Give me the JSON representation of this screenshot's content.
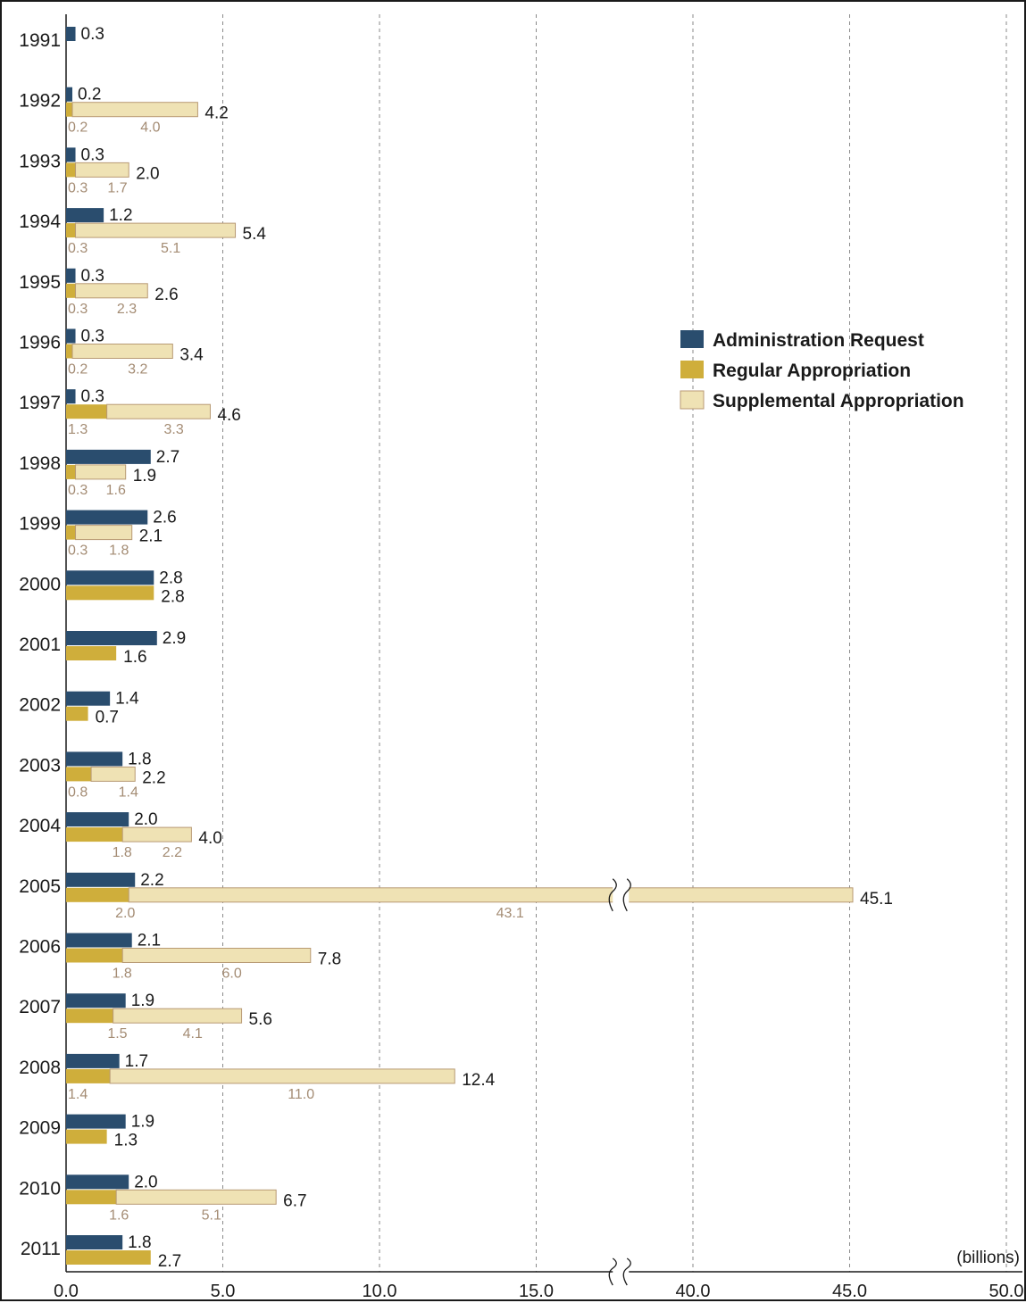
{
  "chart_data": {
    "type": "bar",
    "orientation": "horizontal",
    "stacked_series": [
      "Regular Appropriation",
      "Supplemental Appropriation"
    ],
    "unit_label": "(billions)",
    "grid": "vertical dashed",
    "legend_position": "right",
    "axis_break": {
      "from": 17.5,
      "to": 37.5
    },
    "x_ticks": [
      "0.0",
      "5.0",
      "10.0",
      "15.0",
      "40.0",
      "45.0",
      "50.0"
    ],
    "x_tick_values": [
      0,
      5,
      10,
      15,
      40,
      45,
      50
    ],
    "xlim": [
      0,
      50
    ],
    "colors": {
      "Administration Request": "#2a4d6e",
      "Regular Appropriation": "#cfae3b",
      "Supplemental Appropriation": "#efe2b4"
    },
    "series": [
      {
        "name": "Administration Request",
        "color": "#2a4d6e"
      },
      {
        "name": "Regular Appropriation",
        "color": "#cfae3b"
      },
      {
        "name": "Supplemental Appropriation",
        "color": "#efe2b4"
      }
    ],
    "data": [
      {
        "year": "1991",
        "request": 0.3,
        "request_label": "0.3"
      },
      {
        "year": "1992",
        "request": 0.2,
        "request_label": "0.2",
        "regular": 0.2,
        "regular_label": "0.2",
        "supplemental": 4.0,
        "supplemental_label": "4.0",
        "total_label": "4.2"
      },
      {
        "year": "1993",
        "request": 0.3,
        "request_label": "0.3",
        "regular": 0.3,
        "regular_label": "0.3",
        "supplemental": 1.7,
        "supplemental_label": "1.7",
        "total_label": "2.0"
      },
      {
        "year": "1994",
        "request": 1.2,
        "request_label": "1.2",
        "regular": 0.3,
        "regular_label": "0.3",
        "supplemental": 5.1,
        "supplemental_label": "5.1",
        "total_label": "5.4"
      },
      {
        "year": "1995",
        "request": 0.3,
        "request_label": "0.3",
        "regular": 0.3,
        "regular_label": "0.3",
        "supplemental": 2.3,
        "supplemental_label": "2.3",
        "total_label": "2.6"
      },
      {
        "year": "1996",
        "request": 0.3,
        "request_label": "0.3",
        "regular": 0.2,
        "regular_label": "0.2",
        "supplemental": 3.2,
        "supplemental_label": "3.2",
        "total_label": "3.4"
      },
      {
        "year": "1997",
        "request": 0.3,
        "request_label": "0.3",
        "regular": 1.3,
        "regular_label": "1.3",
        "supplemental": 3.3,
        "supplemental_label": "3.3",
        "total_label": "4.6"
      },
      {
        "year": "1998",
        "request": 2.7,
        "request_label": "2.7",
        "regular": 0.3,
        "regular_label": "0.3",
        "supplemental": 1.6,
        "supplemental_label": "1.6",
        "total_label": "1.9"
      },
      {
        "year": "1999",
        "request": 2.6,
        "request_label": "2.6",
        "regular": 0.3,
        "regular_label": "0.3",
        "supplemental": 1.8,
        "supplemental_label": "1.8",
        "total_label": "2.1"
      },
      {
        "year": "2000",
        "request": 2.8,
        "request_label": "2.8",
        "regular": 2.8,
        "total_label": "2.8"
      },
      {
        "year": "2001",
        "request": 2.9,
        "request_label": "2.9",
        "regular": 1.6,
        "total_label": "1.6"
      },
      {
        "year": "2002",
        "request": 1.4,
        "request_label": "1.4",
        "regular": 0.7,
        "total_label": "0.7"
      },
      {
        "year": "2003",
        "request": 1.8,
        "request_label": "1.8",
        "regular": 0.8,
        "regular_label": "0.8",
        "supplemental": 1.4,
        "supplemental_label": "1.4",
        "total_label": "2.2"
      },
      {
        "year": "2004",
        "request": 2.0,
        "request_label": "2.0",
        "regular": 1.8,
        "regular_label": "1.8",
        "supplemental": 2.2,
        "supplemental_label": "2.2",
        "total_label": "4.0"
      },
      {
        "year": "2005",
        "request": 2.2,
        "request_label": "2.2",
        "regular": 2.0,
        "regular_label": "2.0",
        "supplemental": 43.1,
        "supplemental_label": "43.1",
        "total_label": "45.1"
      },
      {
        "year": "2006",
        "request": 2.1,
        "request_label": "2.1",
        "regular": 1.8,
        "regular_label": "1.8",
        "supplemental": 6.0,
        "supplemental_label": "6.0",
        "total_label": "7.8"
      },
      {
        "year": "2007",
        "request": 1.9,
        "request_label": "1.9",
        "regular": 1.5,
        "regular_label": "1.5",
        "supplemental": 4.1,
        "supplemental_label": "4.1",
        "total_label": "5.6"
      },
      {
        "year": "2008",
        "request": 1.7,
        "request_label": "1.7",
        "regular": 1.4,
        "regular_label": "1.4",
        "supplemental": 11.0,
        "supplemental_label": "11.0",
        "total_label": "12.4"
      },
      {
        "year": "2009",
        "request": 1.9,
        "request_label": "1.9",
        "regular": 1.3,
        "total_label": "1.3"
      },
      {
        "year": "2010",
        "request": 2.0,
        "request_label": "2.0",
        "regular": 1.6,
        "regular_label": "1.6",
        "supplemental": 5.1,
        "supplemental_label": "5.1",
        "total_label": "6.7"
      },
      {
        "year": "2011",
        "request": 1.8,
        "request_label": "1.8",
        "regular": 2.7,
        "total_label": "2.7"
      }
    ]
  }
}
